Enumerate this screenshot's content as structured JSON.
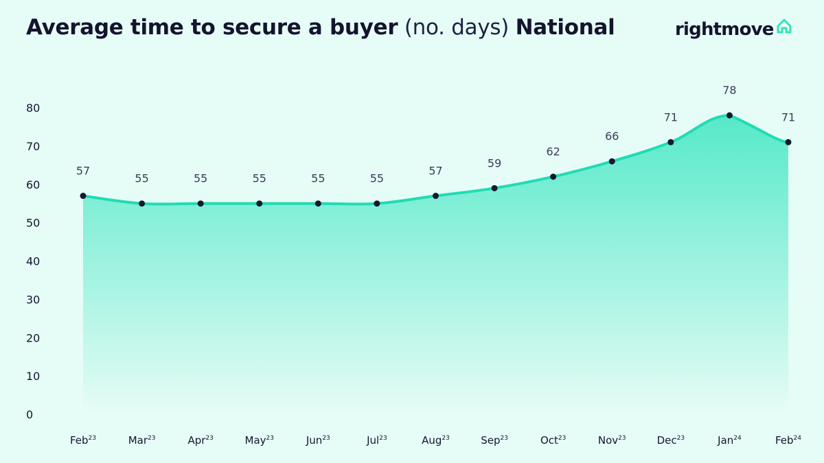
{
  "header": {
    "title_bold": "Average time to secure a buyer",
    "title_light": "(no. days)",
    "title_region": "National"
  },
  "logo": {
    "text": "rightmove",
    "icon": "house-icon",
    "icon_color": "#36e2b8"
  },
  "colors": {
    "background": "#e6fcf6",
    "line": "#1fdcb4",
    "area_top": "#56e9c9",
    "area_bottom": "#e6fcf6",
    "marker": "#16182e",
    "text": "#13142e"
  },
  "chart_data": {
    "type": "area",
    "title": "Average time to secure a buyer (no. days) National",
    "xlabel": "",
    "ylabel": "",
    "categories": [
      {
        "month": "Feb",
        "year": "23"
      },
      {
        "month": "Mar",
        "year": "23"
      },
      {
        "month": "Apr",
        "year": "23"
      },
      {
        "month": "May",
        "year": "23"
      },
      {
        "month": "Jun",
        "year": "23"
      },
      {
        "month": "Jul",
        "year": "23"
      },
      {
        "month": "Aug",
        "year": "23"
      },
      {
        "month": "Sep",
        "year": "23"
      },
      {
        "month": "Oct",
        "year": "23"
      },
      {
        "month": "Nov",
        "year": "23"
      },
      {
        "month": "Dec",
        "year": "23"
      },
      {
        "month": "Jan",
        "year": "24"
      },
      {
        "month": "Feb",
        "year": "24"
      }
    ],
    "series": [
      {
        "values": [
          57,
          55,
          55,
          55,
          55,
          55,
          57,
          59,
          62,
          66,
          71,
          78,
          71
        ]
      }
    ],
    "ylim": [
      0,
      80
    ],
    "yticks": [
      0,
      10,
      20,
      30,
      40,
      50,
      60,
      70,
      80
    ],
    "grid": false,
    "legend": "none",
    "data_labels": true
  }
}
